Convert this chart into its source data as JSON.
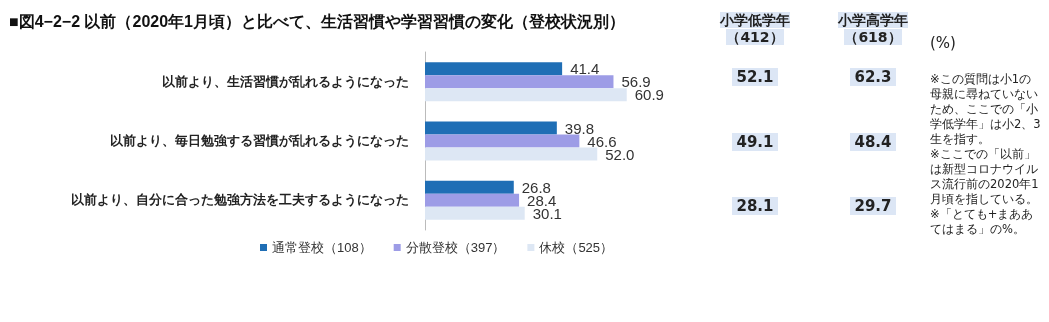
{
  "chart_data": {
    "type": "bar",
    "orientation": "horizontal",
    "title": "■図4−2−2 以前（2020年1月頃）と比べて、生活習慣や学習習慣の変化（登校状況別）",
    "categories": [
      "以前より、生活習慣が乱れるようになった",
      "以前より、毎日勉強する習慣が乱れるようになった",
      "以前より、自分に合った勉強方法を工夫するようになった"
    ],
    "series": [
      {
        "name": "通常登校（108）",
        "color": "#1f6eb5",
        "values": [
          41.4,
          39.8,
          26.8
        ],
        "value_labels": [
          "41.4",
          "39.8",
          "26.8"
        ]
      },
      {
        "name": "分散登校（397）",
        "color": "#9d9ce6",
        "values": [
          56.9,
          46.6,
          28.4
        ],
        "value_labels": [
          "56.9",
          "46.6",
          "28.4"
        ]
      },
      {
        "name": "休校（525）",
        "color": "#dde7f4",
        "values": [
          60.9,
          52.0,
          30.1
        ],
        "value_labels": [
          "60.9",
          "52.0",
          "30.1"
        ]
      }
    ],
    "legend": "bottom",
    "annotations": [
      "小学低学年（412）",
      "小学高学年（618）",
      "52.1",
      "62.3",
      "49.1",
      "48.4",
      "28.1",
      "29.7",
      "(%)",
      "※この質問は小1の母親に尋ねていないため、ここでの「小学低学年」は小2、3生を指す。",
      "※ここでの「以前」は新型コロナウイルス流行前の2020年1月頃を指している。",
      "※「とても+まああてはまる」の%。"
    ]
  }
}
